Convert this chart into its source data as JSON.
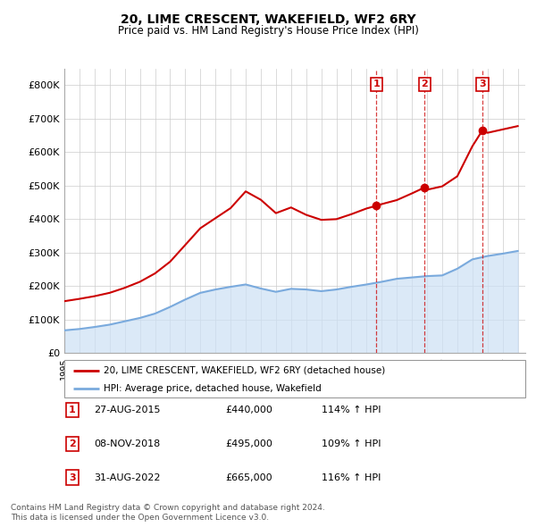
{
  "title": "20, LIME CRESCENT, WAKEFIELD, WF2 6RY",
  "subtitle": "Price paid vs. HM Land Registry's House Price Index (HPI)",
  "hpi_color": "#7aaadd",
  "property_color": "#cc0000",
  "background_color": "#ffffff",
  "plot_bg_color": "#ffffff",
  "grid_color": "#cccccc",
  "ylim": [
    0,
    850000
  ],
  "yticks": [
    0,
    100000,
    200000,
    300000,
    400000,
    500000,
    600000,
    700000,
    800000
  ],
  "ytick_labels": [
    "£0",
    "£100K",
    "£200K",
    "£300K",
    "£400K",
    "£500K",
    "£600K",
    "£700K",
    "£800K"
  ],
  "sale_dates": [
    "27-AUG-2015",
    "08-NOV-2018",
    "31-AUG-2022"
  ],
  "sale_prices": [
    440000,
    495000,
    665000
  ],
  "sale_hpi_pct": [
    "114% ↑ HPI",
    "109% ↑ HPI",
    "116% ↑ HPI"
  ],
  "sale_years": [
    2015.65,
    2018.85,
    2022.66
  ],
  "legend_property": "20, LIME CRESCENT, WAKEFIELD, WF2 6RY (detached house)",
  "legend_hpi": "HPI: Average price, detached house, Wakefield",
  "footer1": "Contains HM Land Registry data © Crown copyright and database right 2024.",
  "footer2": "This data is licensed under the Open Government Licence v3.0.",
  "xmin": 1995.0,
  "xmax": 2025.5,
  "hpi_shade_color": "#cce0f5"
}
